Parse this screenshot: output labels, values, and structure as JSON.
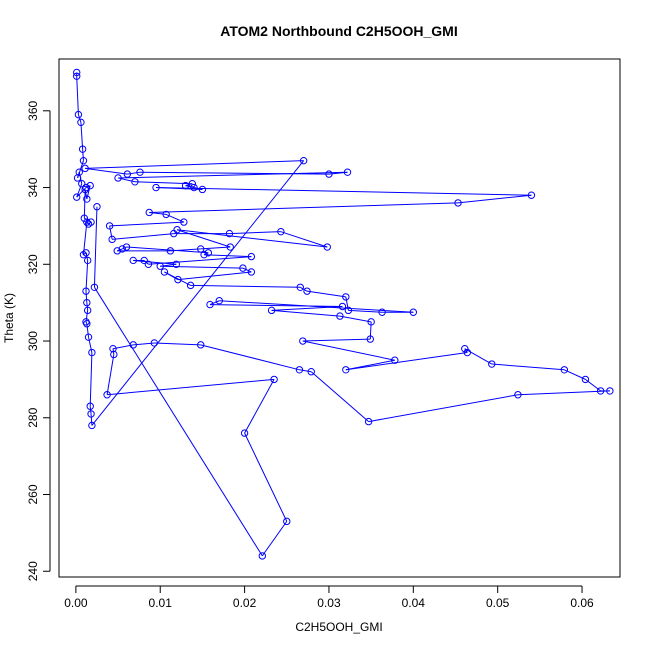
{
  "chart_data": {
    "type": "line",
    "title": "ATOM2 Northbound C2H5OOH_GMI",
    "xlabel": "C2H5OOH_GMI",
    "ylabel": "Theta (K)",
    "xlim": [
      -0.002,
      0.0645
    ],
    "ylim": [
      238.5,
      373.5
    ],
    "xticks": [
      0.0,
      0.01,
      0.02,
      0.03,
      0.04,
      0.05,
      0.06
    ],
    "xtick_labels": [
      "0.00",
      "0.01",
      "0.02",
      "0.03",
      "0.04",
      "0.05",
      "0.06"
    ],
    "yticks": [
      240,
      260,
      280,
      300,
      320,
      340,
      360
    ],
    "ytick_labels": [
      "240",
      "260",
      "280",
      "300",
      "320",
      "340",
      "360"
    ],
    "grid": false,
    "marker": "open-circle",
    "series": [
      {
        "color": "#0000ff",
        "points": [
          [
            0.0001,
            370
          ],
          [
            0.0001,
            369
          ],
          [
            0.0003,
            359
          ],
          [
            0.0006,
            357
          ],
          [
            0.0008,
            350
          ],
          [
            0.0009,
            347
          ],
          [
            0.0002,
            342.5
          ],
          [
            0.0004,
            344
          ],
          [
            0.0007,
            341
          ],
          [
            0.0001,
            337.5
          ],
          [
            0.0012,
            340
          ],
          [
            0.0017,
            340.5
          ],
          [
            0.0013,
            337
          ],
          [
            0.0011,
            339.5
          ],
          [
            0.001,
            332
          ],
          [
            0.0018,
            331
          ],
          [
            0.0015,
            330.5
          ],
          [
            0.0013,
            331
          ],
          [
            0.0009,
            322.5
          ],
          [
            0.0012,
            323
          ],
          [
            0.0014,
            321
          ],
          [
            0.0012,
            313
          ],
          [
            0.0013,
            310
          ],
          [
            0.0014,
            308
          ],
          [
            0.0012,
            305
          ],
          [
            0.0013,
            304.5
          ],
          [
            0.0015,
            301
          ],
          [
            0.0019,
            297
          ],
          [
            0.0017,
            283
          ],
          [
            0.0018,
            281
          ],
          [
            0.0019,
            278
          ],
          [
            0.027,
            347
          ],
          [
            0.0011,
            345
          ],
          [
            0.0061,
            343.5
          ],
          [
            0.0076,
            344
          ],
          [
            0.03,
            343.5
          ],
          [
            0.0322,
            344
          ],
          [
            0.005,
            342.5
          ],
          [
            0.007,
            341.5
          ],
          [
            0.0138,
            341
          ],
          [
            0.013,
            340.5
          ],
          [
            0.014,
            340
          ],
          [
            0.015,
            339.5
          ],
          [
            0.0095,
            340
          ],
          [
            0.054,
            338
          ],
          [
            0.0453,
            336
          ],
          [
            0.0087,
            333.5
          ],
          [
            0.0107,
            333
          ],
          [
            0.0128,
            331
          ],
          [
            0.004,
            330
          ],
          [
            0.0043,
            326.5
          ],
          [
            0.0116,
            328
          ],
          [
            0.0182,
            328
          ],
          [
            0.0243,
            328.5
          ],
          [
            0.0298,
            324.5
          ],
          [
            0.012,
            329
          ],
          [
            0.0183,
            324.5
          ],
          [
            0.0148,
            324
          ],
          [
            0.0112,
            323.5
          ],
          [
            0.0049,
            323.5
          ],
          [
            0.0055,
            324
          ],
          [
            0.006,
            324.5
          ],
          [
            0.0157,
            323
          ],
          [
            0.0152,
            322.5
          ],
          [
            0.0208,
            322
          ],
          [
            0.0086,
            320
          ],
          [
            0.0081,
            321
          ],
          [
            0.0068,
            321
          ],
          [
            0.0119,
            320
          ],
          [
            0.01,
            319.5
          ],
          [
            0.0198,
            319
          ],
          [
            0.0208,
            318
          ],
          [
            0.0121,
            316
          ],
          [
            0.0105,
            318
          ],
          [
            0.0136,
            314.5
          ],
          [
            0.0266,
            314
          ],
          [
            0.0274,
            313
          ],
          [
            0.032,
            311.5
          ],
          [
            0.0323,
            308
          ],
          [
            0.0363,
            307.5
          ],
          [
            0.04,
            307.5
          ],
          [
            0.017,
            310.5
          ],
          [
            0.0159,
            309.5
          ],
          [
            0.0316,
            309
          ],
          [
            0.0232,
            308
          ],
          [
            0.0313,
            306.5
          ],
          [
            0.035,
            305
          ],
          [
            0.0349,
            300.5
          ],
          [
            0.0269,
            300
          ],
          [
            0.0378,
            295
          ],
          [
            0.032,
            292.5
          ],
          [
            0.0464,
            297
          ],
          [
            0.0461,
            298
          ],
          [
            0.0493,
            294
          ],
          [
            0.0579,
            292.5
          ],
          [
            0.0604,
            290
          ],
          [
            0.0622,
            287
          ],
          [
            0.0633,
            287
          ],
          [
            0.0524,
            286
          ],
          [
            0.0347,
            279
          ],
          [
            0.0279,
            292
          ],
          [
            0.0265,
            292.5
          ],
          [
            0.0148,
            299
          ],
          [
            0.0093,
            299.5
          ],
          [
            0.0068,
            299
          ],
          [
            0.0044,
            298
          ],
          [
            0.0045,
            296.5
          ],
          [
            0.0037,
            286
          ],
          [
            0.0235,
            290
          ],
          [
            0.02,
            276
          ],
          [
            0.025,
            253
          ],
          [
            0.0221,
            244
          ],
          [
            0.0022,
            314
          ],
          [
            0.0025,
            335
          ]
        ]
      }
    ]
  }
}
